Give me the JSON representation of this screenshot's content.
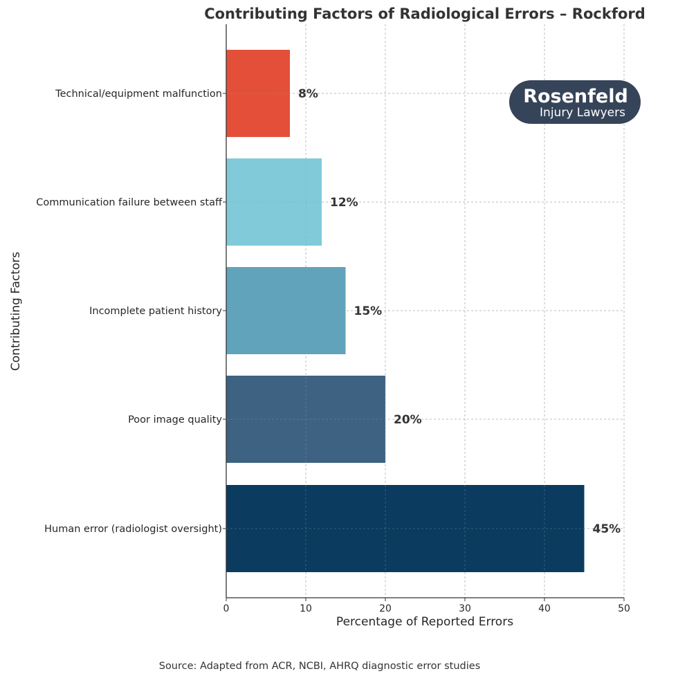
{
  "chart_data": {
    "type": "bar",
    "orientation": "horizontal",
    "title": "Contributing Factors of Radiological Errors – Rockford",
    "xlabel": "Percentage of Reported Errors",
    "ylabel": "Contributing Factors",
    "xlim": [
      0,
      50
    ],
    "xticks": [
      0,
      10,
      20,
      30,
      40,
      50
    ],
    "grid": true,
    "categories": [
      "Technical/equipment malfunction",
      "Communication failure between staff",
      "Incomplete patient history",
      "Poor image quality",
      "Human error (radiologist oversight)"
    ],
    "values": [
      8,
      12,
      15,
      20,
      45
    ],
    "value_labels": [
      "8%",
      "12%",
      "15%",
      "20%",
      "45%"
    ],
    "colors": [
      "#e34f39",
      "#80cad9",
      "#61a3bb",
      "#3e6282",
      "#0b3b5e"
    ],
    "source": "Source: Adapted from ACR, NCBI, AHRQ diagnostic error studies"
  },
  "logo": {
    "main": "Rosenfeld",
    "sub": "Injury Lawyers",
    "background": "#364459"
  }
}
